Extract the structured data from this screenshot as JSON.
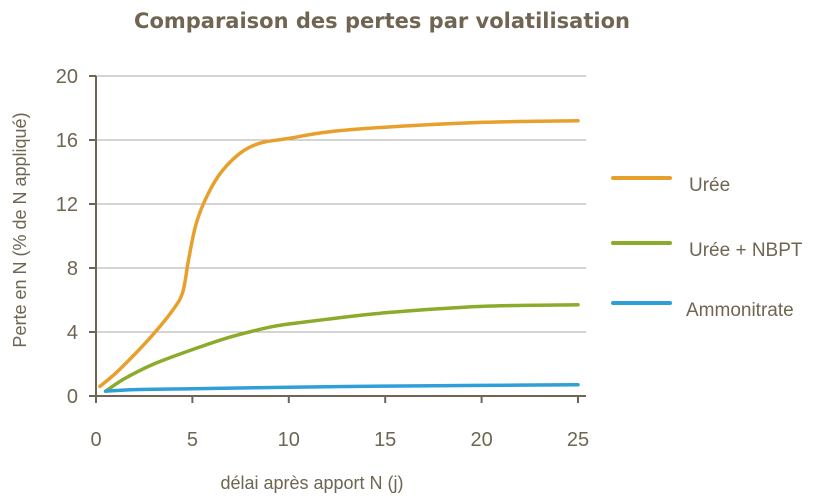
{
  "chart_data": {
    "type": "line",
    "title": "Comparaison des pertes par volatilisation",
    "xlabel": "délai après apport N (j)",
    "ylabel": "Perte en N (% de N appliqué)",
    "xlim": [
      0,
      25
    ],
    "ylim": [
      0,
      20
    ],
    "xticks": [
      0,
      5,
      10,
      15,
      20,
      25
    ],
    "yticks": [
      0,
      4,
      8,
      12,
      16,
      20
    ],
    "grid": true,
    "legend_position": "right",
    "series": [
      {
        "name": "Urée",
        "color": "#e8a02c",
        "points": [
          [
            0.2,
            0.6
          ],
          [
            1,
            1.4
          ],
          [
            2,
            2.6
          ],
          [
            3,
            3.9
          ],
          [
            4,
            5.4
          ],
          [
            4.5,
            6.5
          ],
          [
            4.8,
            8.5
          ],
          [
            5.2,
            10.8
          ],
          [
            5.8,
            12.6
          ],
          [
            6.5,
            14.0
          ],
          [
            7.5,
            15.2
          ],
          [
            8.5,
            15.8
          ],
          [
            10,
            16.1
          ],
          [
            12,
            16.5
          ],
          [
            15,
            16.8
          ],
          [
            20,
            17.1
          ],
          [
            25,
            17.2
          ]
        ]
      },
      {
        "name": "Urée + NBPT",
        "color": "#8bab2a",
        "points": [
          [
            0.5,
            0.3
          ],
          [
            1.5,
            1.1
          ],
          [
            3,
            2.0
          ],
          [
            5,
            2.9
          ],
          [
            7,
            3.7
          ],
          [
            9,
            4.3
          ],
          [
            10,
            4.5
          ],
          [
            12,
            4.8
          ],
          [
            15,
            5.2
          ],
          [
            20,
            5.6
          ],
          [
            25,
            5.7
          ]
        ]
      },
      {
        "name": "Ammonitrate",
        "color": "#2f9fd8",
        "points": [
          [
            0.5,
            0.3
          ],
          [
            2,
            0.4
          ],
          [
            5,
            0.45
          ],
          [
            10,
            0.55
          ],
          [
            15,
            0.62
          ],
          [
            20,
            0.66
          ],
          [
            25,
            0.7
          ]
        ]
      }
    ]
  }
}
